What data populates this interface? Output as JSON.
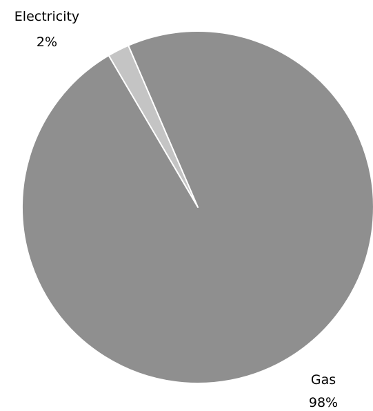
{
  "chart_data": {
    "type": "pie",
    "title": "",
    "slices": [
      {
        "name": "Electricity",
        "value": 2,
        "value_label": "2%",
        "color": "#c4c4c4"
      },
      {
        "name": "Gas",
        "value": 98,
        "value_label": "98%",
        "color": "#8f8f8f"
      }
    ],
    "legend": "none"
  }
}
